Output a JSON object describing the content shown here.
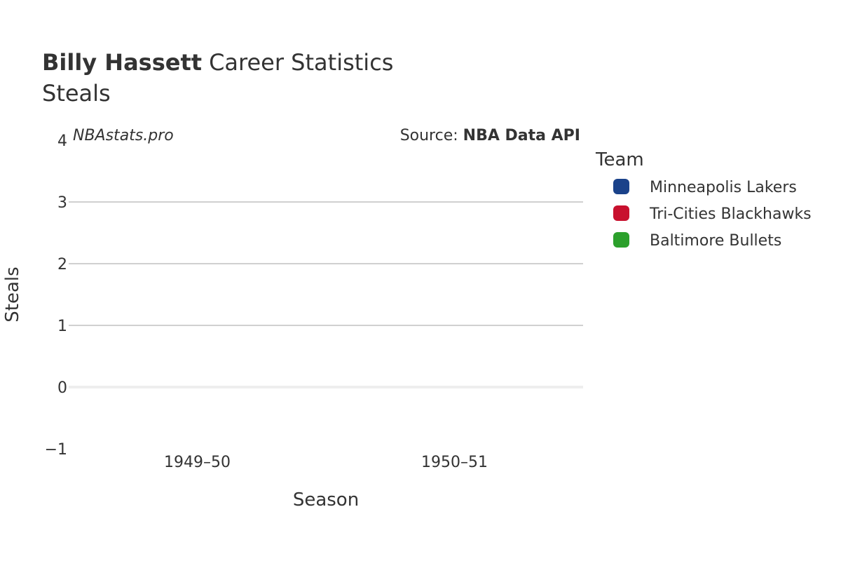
{
  "chart_data": {
    "type": "scatter",
    "title_bold": "Billy Hassett",
    "title_rest": "Career Statistics",
    "subtitle": "Steals",
    "watermark": "NBAstats.pro",
    "source_prefix": "Source: ",
    "source_name": "NBA Data API",
    "xlabel": "Season",
    "ylabel": "Steals",
    "categories": [
      "1949–50",
      "1950–51"
    ],
    "ylim": [
      -1,
      4
    ],
    "yticks": [
      {
        "value": -1,
        "label": "−1"
      },
      {
        "value": 0,
        "label": "0"
      },
      {
        "value": 1,
        "label": "1"
      },
      {
        "value": 2,
        "label": "2"
      },
      {
        "value": 3,
        "label": "3"
      },
      {
        "value": 4,
        "label": "4"
      }
    ],
    "grid": true,
    "legend": {
      "title": "Team",
      "placement": "right",
      "entries": [
        {
          "name": "Minneapolis Lakers",
          "color": "#1a428a"
        },
        {
          "name": "Tri-Cities Blackhawks",
          "color": "#c8102e"
        },
        {
          "name": "Baltimore Bullets",
          "color": "#2ca02c"
        }
      ]
    },
    "series": [
      {
        "name": "Minneapolis Lakers",
        "values": []
      },
      {
        "name": "Tri-Cities Blackhawks",
        "values": []
      },
      {
        "name": "Baltimore Bullets",
        "values": []
      }
    ]
  },
  "colors": {
    "text": "#333333",
    "grid": "#c0c0c0",
    "zero_line": "#eeeeee"
  }
}
